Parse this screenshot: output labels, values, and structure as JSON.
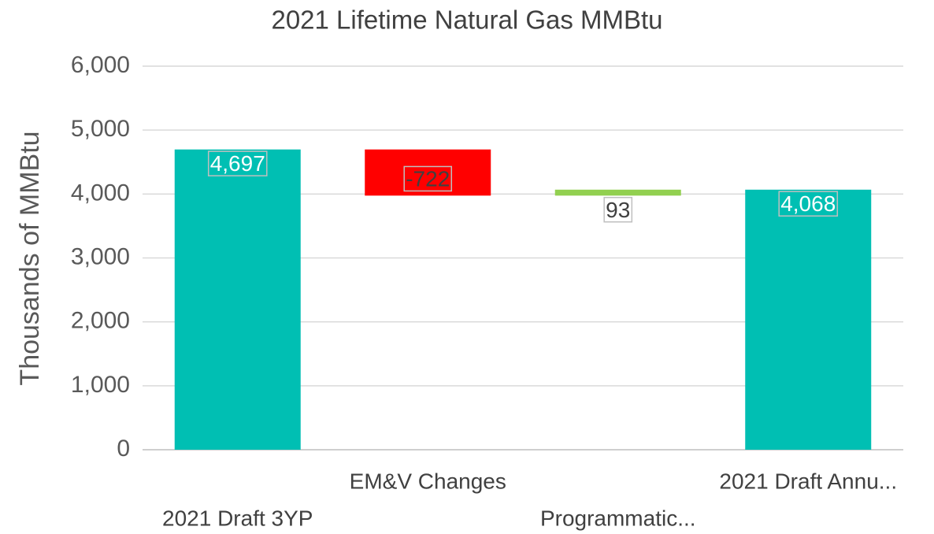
{
  "chart_data": {
    "type": "waterfall",
    "title": "2021 Lifetime Natural Gas MMBtu",
    "y_axis_label": "Thousands of MMBtu",
    "categories": [
      "2021 Draft 3YP",
      "EM&V Changes",
      "Programmatic...",
      "2021 Draft Annu..."
    ],
    "values": [
      4697,
      -722,
      93,
      4068
    ],
    "value_labels": [
      "4,697",
      "-722",
      "93",
      "4,068"
    ],
    "is_total": [
      true,
      false,
      false,
      true
    ],
    "colors": [
      "#00bfb3",
      "#ff0000",
      "#92d050",
      "#00bfb3"
    ],
    "ylim": [
      0,
      6000
    ],
    "yticks": [
      0,
      {
        "value": 1000,
        "label": "1,000"
      },
      {
        "value": 2000,
        "label": "2,000"
      },
      {
        "value": 3000,
        "label": "3,000"
      },
      {
        "value": 4000,
        "label": "4,000"
      },
      {
        "value": 5000,
        "label": "5,000"
      },
      {
        "value": 6000,
        "label": "6,000"
      }
    ],
    "grid": true
  }
}
